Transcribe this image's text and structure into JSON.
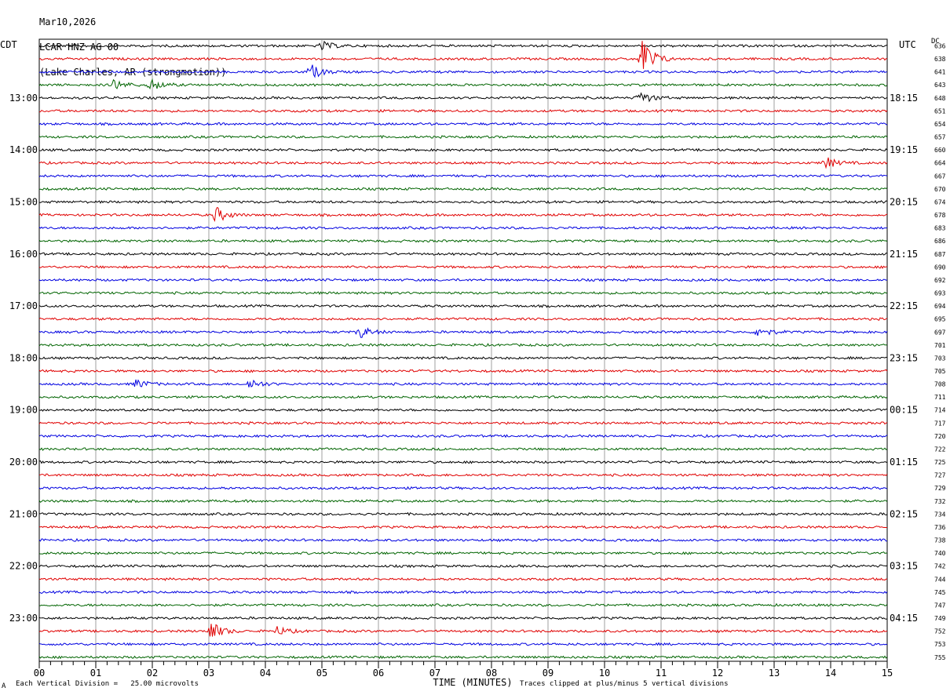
{
  "header": {
    "date": "Mar10,2026",
    "station": "LCAR HNZ AG 00",
    "location": "(Lake Charles, AR (strongmotion))"
  },
  "left_tz": "CDT",
  "right_tz": "UTC",
  "dc_label": "DC",
  "footer": {
    "scale_note": "Each Vertical Division =   25.00 microvolts",
    "clip_note": "Traces clipped at plus/minus 5 vertical divisions",
    "corner_mark": "A"
  },
  "colors": {
    "cycle": [
      "#000000",
      "#e00000",
      "#0000e0",
      "#006400"
    ],
    "grid": "#888888"
  },
  "chart_data": {
    "type": "line",
    "xlabel": "TIME (MINUTES)",
    "xlim": [
      0,
      15
    ],
    "x_ticks": [
      "00",
      "01",
      "02",
      "03",
      "04",
      "05",
      "06",
      "07",
      "08",
      "09",
      "10",
      "11",
      "12",
      "13",
      "14",
      "15"
    ],
    "trace_count": 48,
    "left_hour_labels": [
      "13:00",
      "14:00",
      "15:00",
      "16:00",
      "17:00",
      "18:00",
      "19:00",
      "20:00",
      "21:00",
      "22:00",
      "23:00"
    ],
    "right_hour_labels": [
      "18:15",
      "19:15",
      "20:15",
      "21:15",
      "22:15",
      "23:15",
      "00:15",
      "01:15",
      "02:15",
      "03:15",
      "04:15"
    ],
    "dc_values": [
      "636",
      "638",
      "641",
      "643",
      "648",
      "651",
      "654",
      "657",
      "660",
      "664",
      "667",
      "670",
      "674",
      "678",
      "683",
      "686",
      "687",
      "690",
      "692",
      "693",
      "694",
      "695",
      "697",
      "701",
      "703",
      "705",
      "708",
      "711",
      "714",
      "717",
      "720",
      "722",
      "725",
      "727",
      "729",
      "732",
      "734",
      "736",
      "738",
      "740",
      "742",
      "744",
      "745",
      "747",
      "749",
      "752",
      "753",
      "755"
    ],
    "events": [
      {
        "trace": 0,
        "minute": 5.0,
        "amp": 6
      },
      {
        "trace": 1,
        "minute": 10.65,
        "amp": 32
      },
      {
        "trace": 2,
        "minute": 4.8,
        "amp": 10
      },
      {
        "trace": 3,
        "minute": 1.3,
        "amp": 8
      },
      {
        "trace": 3,
        "minute": 1.95,
        "amp": 9
      },
      {
        "trace": 4,
        "minute": 10.6,
        "amp": 10
      },
      {
        "trace": 9,
        "minute": 13.9,
        "amp": 8
      },
      {
        "trace": 13,
        "minute": 3.1,
        "amp": 12
      },
      {
        "trace": 22,
        "minute": 5.65,
        "amp": 9
      },
      {
        "trace": 22,
        "minute": 12.7,
        "amp": 8
      },
      {
        "trace": 26,
        "minute": 1.7,
        "amp": 7
      },
      {
        "trace": 26,
        "minute": 3.7,
        "amp": 8
      },
      {
        "trace": 45,
        "minute": 3.0,
        "amp": 16
      },
      {
        "trace": 45,
        "minute": 4.2,
        "amp": 6
      }
    ]
  }
}
